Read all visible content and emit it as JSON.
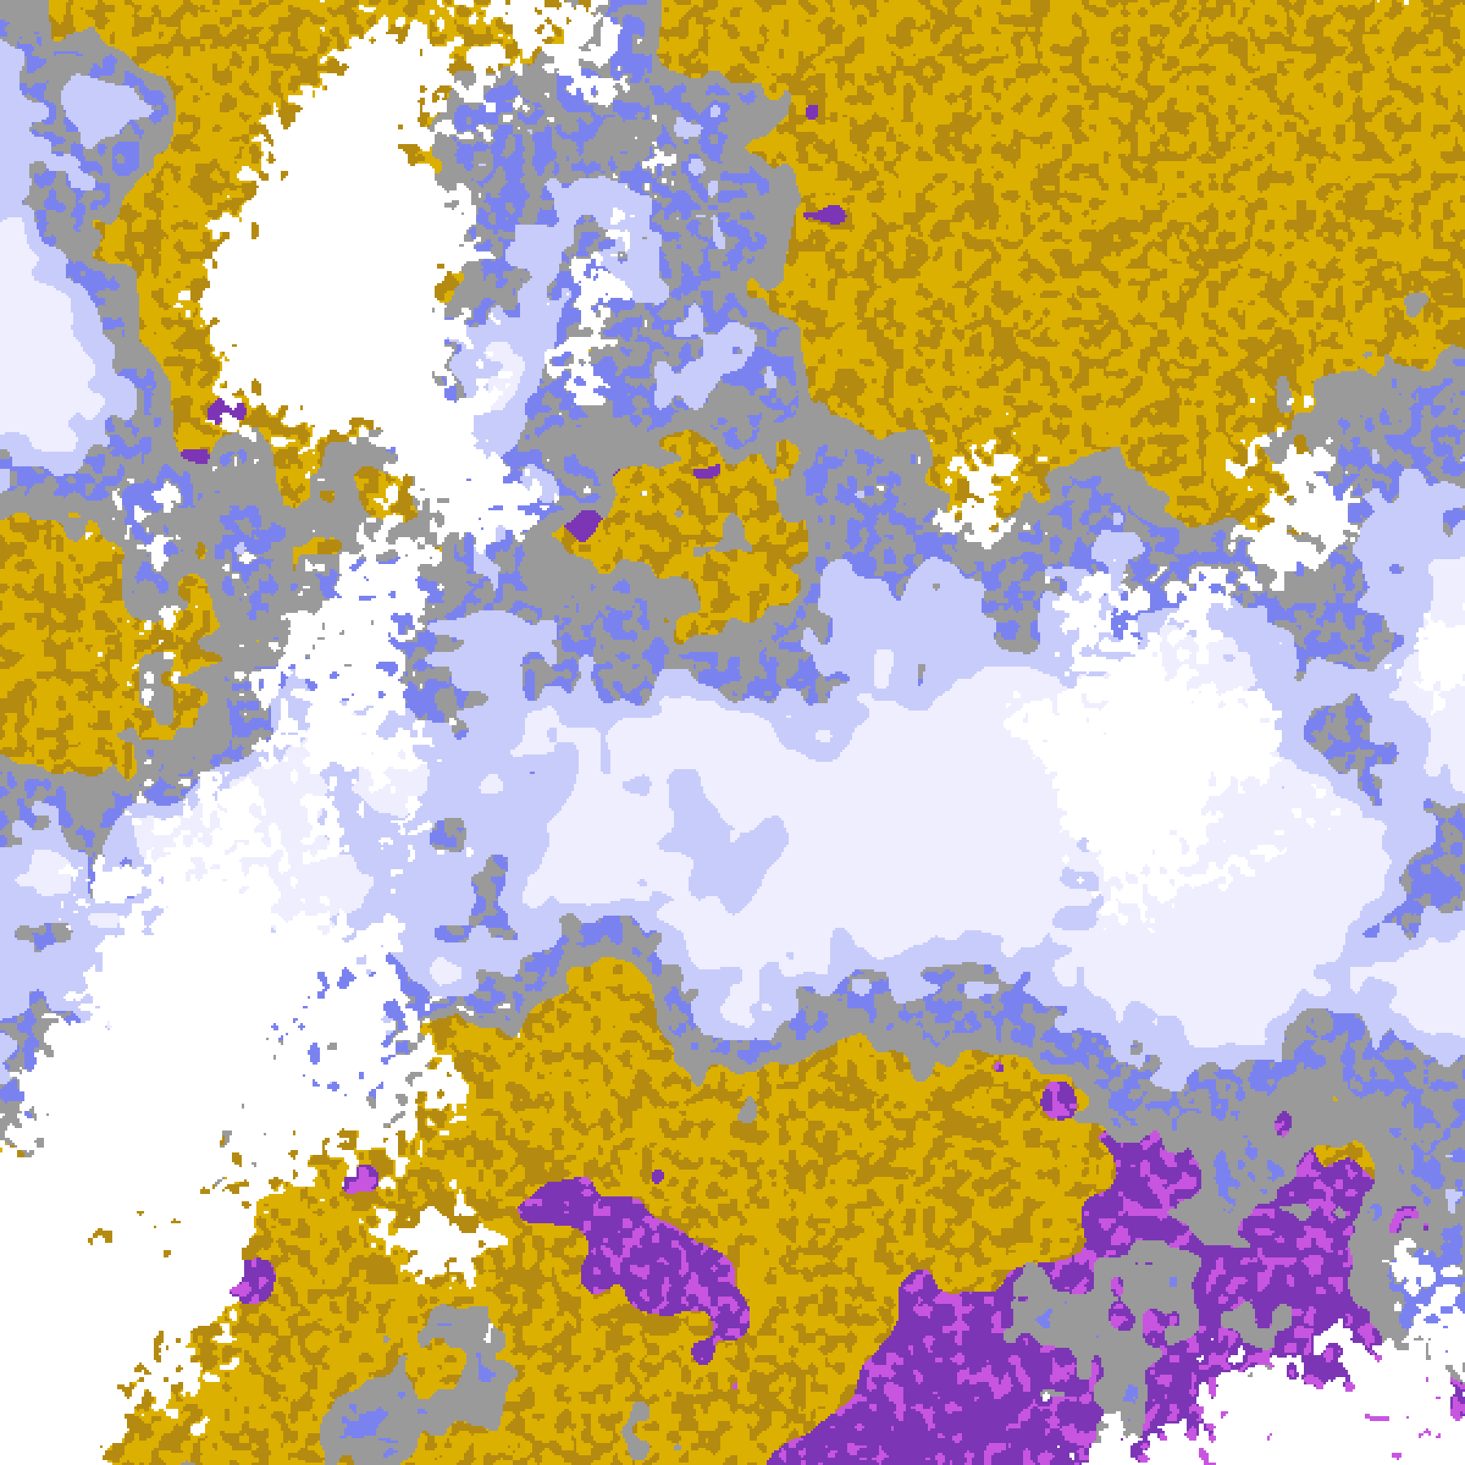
{
  "map": {
    "type": "satellite cloud classification imagery",
    "palette": {
      "clear": "#ffffff",
      "gray": "#9a9a9a",
      "light_gray": "#c4c4c4",
      "gold": "#dcb000",
      "dark_gold": "#b48a10",
      "purple": "#7b35b5",
      "magenta": "#c855e0",
      "blue": "#7a82f0",
      "lavender": "#c8ccfa",
      "pale": "#eeeefe"
    }
  }
}
